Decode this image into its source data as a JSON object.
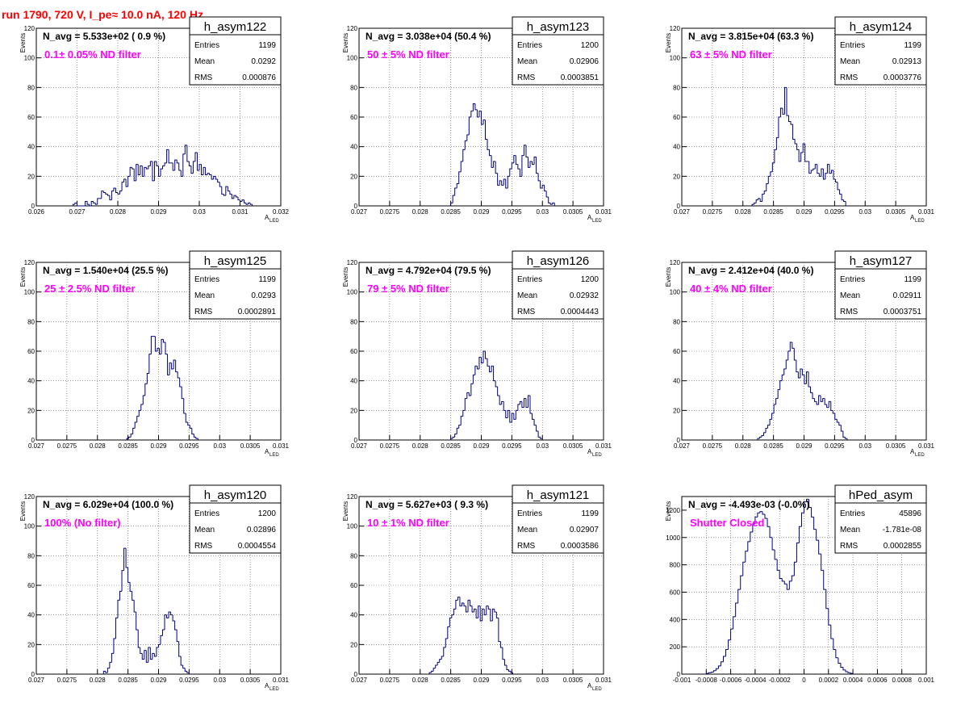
{
  "page": {
    "title": "run 1790,   720 V, I_pe≈ 10.0 nA, 120 Hz"
  },
  "chart_data": [
    {
      "type": "bar",
      "name": "h_asym122",
      "navg": "N_avg = 5.533e+02 ( 0.9 %)",
      "filter": "0.1± 0.05% ND filter",
      "stats": {
        "Entries": "1199",
        "Mean": "0.0292",
        "RMS": "0.000876"
      },
      "xlim": [
        0.026,
        0.032
      ],
      "ylim": [
        0,
        120
      ],
      "xticks": [
        "0.026",
        "0.027",
        "0.028",
        "0.029",
        "0.03",
        "0.031",
        "0.032"
      ],
      "yticks": [
        "0",
        "20",
        "40",
        "60",
        "80",
        "100",
        "120"
      ],
      "xlabel": "A",
      "xlabel_sub": "LED",
      "ylabel": "Events",
      "x_start": 0.0269,
      "bin_width": 5e-05,
      "values": [
        1,
        2,
        0,
        0,
        0,
        0,
        3,
        1,
        0,
        3,
        2,
        1,
        5,
        5,
        10,
        9,
        8,
        7,
        4,
        10,
        12,
        9,
        8,
        10,
        16,
        18,
        13,
        20,
        26,
        25,
        17,
        28,
        21,
        27,
        20,
        26,
        25,
        27,
        30,
        17,
        30,
        27,
        20,
        25,
        27,
        29,
        38,
        29,
        29,
        24,
        31,
        29,
        24,
        20,
        35,
        41,
        30,
        27,
        22,
        30,
        36,
        24,
        28,
        21,
        26,
        21,
        22,
        21,
        18,
        20,
        18,
        16,
        13,
        8,
        7,
        13,
        10,
        8,
        5,
        7,
        6,
        4,
        3,
        4,
        2,
        1,
        2,
        1
      ]
    },
    {
      "type": "bar",
      "name": "h_asym123",
      "navg": "N_avg = 3.038e+04 (50.4 %)",
      "filter": "50 ± 5% ND filter",
      "stats": {
        "Entries": "1200",
        "Mean": "0.02906",
        "RMS": "0.0003851"
      },
      "xlim": [
        0.027,
        0.031
      ],
      "ylim": [
        0,
        120
      ],
      "xticks": [
        "0.027",
        "0.0275",
        "0.028",
        "0.0285",
        "0.029",
        "0.0295",
        "0.03",
        "0.0305",
        "0.031"
      ],
      "yticks": [
        "0",
        "20",
        "40",
        "60",
        "80",
        "100",
        "120"
      ],
      "xlabel": "A",
      "xlabel_sub": "LED",
      "ylabel": "Events",
      "x_start": 0.0285,
      "bin_width": 3.33e-05,
      "values": [
        2,
        7,
        12,
        15,
        23,
        30,
        38,
        44,
        48,
        60,
        64,
        69,
        65,
        60,
        64,
        55,
        58,
        45,
        38,
        34,
        26,
        30,
        22,
        14,
        17,
        14,
        18,
        12,
        20,
        25,
        29,
        34,
        28,
        25,
        20,
        34,
        41,
        33,
        26,
        30,
        28,
        33,
        22,
        17,
        12,
        14,
        10,
        6,
        2,
        1,
        2
      ]
    },
    {
      "type": "bar",
      "name": "h_asym124",
      "navg": "N_avg = 3.815e+04 (63.3 %)",
      "filter": "63 ± 5% ND filter",
      "stats": {
        "Entries": "1199",
        "Mean": "0.02913",
        "RMS": "0.0003776"
      },
      "xlim": [
        0.027,
        0.031
      ],
      "ylim": [
        0,
        120
      ],
      "xticks": [
        "0.027",
        "0.0275",
        "0.028",
        "0.0285",
        "0.029",
        "0.0295",
        "0.03",
        "0.0305",
        "0.031"
      ],
      "yticks": [
        "0",
        "20",
        "40",
        "60",
        "80",
        "100",
        "120"
      ],
      "xlabel": "A",
      "xlabel_sub": "LED",
      "ylabel": "Events",
      "x_start": 0.02815,
      "bin_width": 3.33e-05,
      "values": [
        1,
        2,
        4,
        5,
        3,
        8,
        10,
        15,
        20,
        23,
        29,
        38,
        46,
        60,
        66,
        62,
        80,
        61,
        57,
        55,
        45,
        42,
        38,
        30,
        36,
        42,
        30,
        30,
        22,
        24,
        25,
        28,
        22,
        20,
        25,
        18,
        22,
        28,
        22,
        24,
        18,
        16,
        11,
        8,
        4,
        3
      ]
    },
    {
      "type": "bar",
      "name": "h_asym125",
      "navg": "N_avg = 1.540e+04 (25.5 %)",
      "filter": "25 ± 2.5% ND filter",
      "stats": {
        "Entries": "1199",
        "Mean": "0.0293",
        "RMS": "0.0002891"
      },
      "xlim": [
        0.027,
        0.031
      ],
      "ylim": [
        0,
        120
      ],
      "xticks": [
        "0.027",
        "0.0275",
        "0.028",
        "0.0285",
        "0.029",
        "0.0295",
        "0.03",
        "0.0305",
        "0.031"
      ],
      "yticks": [
        "0",
        "20",
        "40",
        "60",
        "80",
        "100",
        "120"
      ],
      "xlabel": "A",
      "xlabel_sub": "LED",
      "ylabel": "Events",
      "x_start": 0.02848,
      "bin_width": 3.33e-05,
      "values": [
        1,
        2,
        4,
        8,
        12,
        16,
        20,
        24,
        30,
        38,
        45,
        58,
        70,
        70,
        60,
        62,
        58,
        68,
        66,
        58,
        44,
        52,
        48,
        54,
        46,
        42,
        36,
        28,
        18,
        12,
        10,
        8,
        4,
        2,
        1
      ]
    },
    {
      "type": "bar",
      "name": "h_asym126",
      "navg": "N_avg = 4.792e+04 (79.5 %)",
      "filter": "79 ± 5% ND filter",
      "stats": {
        "Entries": "1200",
        "Mean": "0.02932",
        "RMS": "0.0004443"
      },
      "xlim": [
        0.027,
        0.031
      ],
      "ylim": [
        0,
        120
      ],
      "xticks": [
        "0.027",
        "0.0275",
        "0.028",
        "0.0285",
        "0.029",
        "0.0295",
        "0.03",
        "0.0305",
        "0.031"
      ],
      "yticks": [
        "0",
        "20",
        "40",
        "60",
        "80",
        "100",
        "120"
      ],
      "xlabel": "A",
      "xlabel_sub": "LED",
      "ylabel": "Events",
      "x_start": 0.0285,
      "bin_width": 3.33e-05,
      "values": [
        1,
        2,
        4,
        8,
        10,
        16,
        20,
        28,
        32,
        30,
        38,
        44,
        50,
        48,
        56,
        52,
        60,
        55,
        50,
        46,
        50,
        40,
        36,
        30,
        24,
        26,
        20,
        15,
        20,
        12,
        18,
        14,
        20,
        24,
        26,
        22,
        28,
        22,
        30,
        18,
        14,
        10,
        6,
        2,
        1
      ]
    },
    {
      "type": "bar",
      "name": "h_asym127",
      "navg": "N_avg = 2.412e+04 (40.0 %)",
      "filter": "40 ± 4% ND filter",
      "stats": {
        "Entries": "1199",
        "Mean": "0.02911",
        "RMS": "0.0003751"
      },
      "xlim": [
        0.027,
        0.031
      ],
      "ylim": [
        0,
        120
      ],
      "xticks": [
        "0.027",
        "0.0275",
        "0.028",
        "0.0285",
        "0.029",
        "0.0295",
        "0.03",
        "0.0305",
        "0.031"
      ],
      "yticks": [
        "0",
        "20",
        "40",
        "60",
        "80",
        "100",
        "120"
      ],
      "xlabel": "A",
      "xlabel_sub": "LED",
      "ylabel": "Events",
      "x_start": 0.02824,
      "bin_width": 3.33e-05,
      "values": [
        1,
        2,
        3,
        5,
        8,
        10,
        14,
        18,
        24,
        28,
        34,
        40,
        44,
        48,
        54,
        60,
        66,
        62,
        54,
        46,
        42,
        48,
        44,
        38,
        46,
        36,
        32,
        28,
        26,
        24,
        30,
        26,
        28,
        24,
        22,
        26,
        20,
        18,
        14,
        12,
        10,
        6,
        2,
        1
      ]
    },
    {
      "type": "bar",
      "name": "h_asym120",
      "navg": "N_avg = 6.029e+04 (100.0 %)",
      "filter": "100% (No filter)",
      "stats": {
        "Entries": "1200",
        "Mean": "0.02896",
        "RMS": "0.0004554"
      },
      "xlim": [
        0.027,
        0.031
      ],
      "ylim": [
        0,
        120
      ],
      "xticks": [
        "0.027",
        "0.0275",
        "0.028",
        "0.0285",
        "0.029",
        "0.0295",
        "0.03",
        "0.0305",
        "0.031"
      ],
      "yticks": [
        "0",
        "20",
        "40",
        "60",
        "80",
        "100",
        "120"
      ],
      "xlabel": "A",
      "xlabel_sub": "LED",
      "ylabel": "Events",
      "x_start": 0.0281,
      "bin_width": 3.33e-05,
      "values": [
        2,
        1,
        4,
        8,
        14,
        24,
        38,
        50,
        56,
        70,
        85,
        72,
        62,
        56,
        50,
        42,
        30,
        18,
        14,
        10,
        16,
        8,
        18,
        10,
        14,
        12,
        18,
        20,
        26,
        30,
        40,
        38,
        42,
        40,
        36,
        30,
        22,
        12,
        6,
        4,
        2,
        1
      ]
    },
    {
      "type": "bar",
      "name": "h_asym121",
      "navg": "N_avg = 5.627e+03 ( 9.3 %)",
      "filter": "10 ± 1% ND filter",
      "stats": {
        "Entries": "1199",
        "Mean": "0.02907",
        "RMS": "0.0003586"
      },
      "xlim": [
        0.027,
        0.031
      ],
      "ylim": [
        0,
        120
      ],
      "xticks": [
        "0.027",
        "0.0275",
        "0.028",
        "0.0285",
        "0.029",
        "0.0295",
        "0.03",
        "0.0305",
        "0.031"
      ],
      "yticks": [
        "0",
        "20",
        "40",
        "60",
        "80",
        "100",
        "120"
      ],
      "xlabel": "A",
      "xlabel_sub": "LED",
      "ylabel": "Events",
      "x_start": 0.02815,
      "bin_width": 3.33e-05,
      "values": [
        1,
        2,
        4,
        6,
        8,
        10,
        12,
        18,
        24,
        32,
        38,
        40,
        44,
        50,
        52,
        46,
        48,
        46,
        42,
        50,
        46,
        42,
        44,
        38,
        46,
        36,
        44,
        40,
        46,
        44,
        36,
        44,
        42,
        38,
        22,
        18,
        10,
        6,
        3,
        2,
        1
      ]
    },
    {
      "type": "bar",
      "name": "hPed_asym",
      "navg": "N_avg = -4.493e-03 (-0.0%)",
      "filter": "Shutter Closed",
      "stats": {
        "Entries": "45896",
        "Mean": "-1.781e-08",
        "RMS": "0.0002855"
      },
      "xlim": [
        -0.001,
        0.001
      ],
      "ylim": [
        0,
        1300
      ],
      "xticks": [
        "-0.001",
        "-0.0008",
        "-0.0006",
        "-0.0004",
        "-0.0002",
        "0",
        "0.0002",
        "0.0004",
        "0.0006",
        "0.0008",
        "0.001"
      ],
      "yticks": [
        "0",
        "200",
        "400",
        "600",
        "800",
        "1000",
        "1200"
      ],
      "xlabel": "",
      "xlabel_sub": "",
      "ylabel": "Events",
      "x_start": -0.0008,
      "bin_width": 2e-05,
      "values": [
        5,
        10,
        15,
        25,
        40,
        60,
        90,
        130,
        180,
        250,
        330,
        420,
        520,
        620,
        720,
        820,
        900,
        970,
        1040,
        1100,
        1150,
        1180,
        1190,
        1170,
        1140,
        1080,
        1000,
        910,
        840,
        760,
        700,
        680,
        660,
        620,
        680,
        720,
        820,
        960,
        1080,
        1180,
        1260,
        1280,
        1220,
        1150,
        1060,
        980,
        880,
        760,
        620,
        480,
        360,
        260,
        180,
        120,
        80,
        50,
        30,
        18,
        10,
        5
      ]
    }
  ]
}
